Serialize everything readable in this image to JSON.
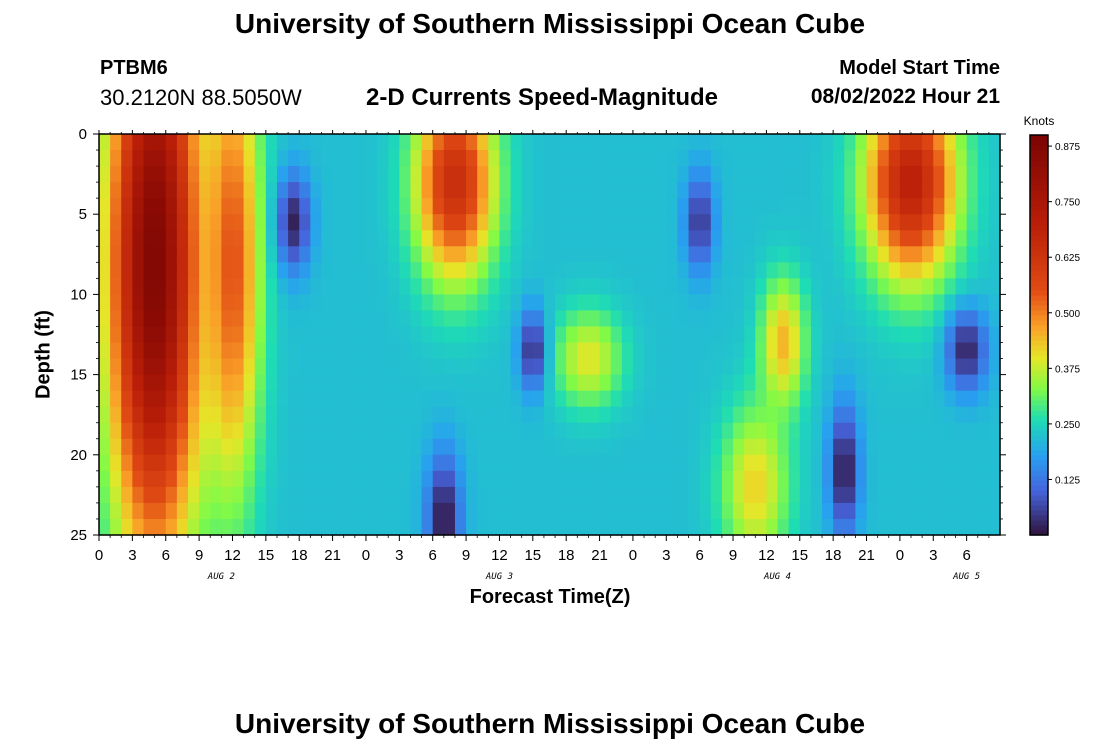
{
  "header": {
    "title_top": "University of Southern Mississippi Ocean Cube",
    "title_bottom": "University of Southern Mississippi Ocean Cube",
    "station": "PTBM6",
    "coordinates": "30.2120N  88.5050W",
    "chart_title": "2-D Currents Speed-Magnitude",
    "model_start_label": "Model Start Time",
    "model_start_value": "08/02/2022 Hour 21"
  },
  "chart_data": {
    "type": "heatmap",
    "title": "2-D Currents Speed-Magnitude",
    "xlabel": "Forecast Time(Z)",
    "ylabel": "Depth (ft)",
    "colorbar_label": "Knots",
    "colorbar_ticks": [
      "0.125",
      "0.250",
      "0.375",
      "0.500",
      "0.625",
      "0.750",
      "0.875"
    ],
    "colorbar_range": [
      0.0,
      0.9
    ],
    "x_range_hours": [
      0,
      81
    ],
    "x_ticks": [
      "0",
      "3",
      "6",
      "9",
      "12",
      "15",
      "18",
      "21",
      "0",
      "3",
      "6",
      "9",
      "12",
      "15",
      "18",
      "21",
      "0",
      "3",
      "6",
      "9",
      "12",
      "15",
      "18",
      "21",
      "0",
      "3",
      "6"
    ],
    "y_range_ft": [
      0,
      25
    ],
    "y_ticks": [
      "0",
      "5",
      "10",
      "15",
      "20",
      "25"
    ],
    "date_labels": [
      {
        "text": "AUG 2",
        "hour": 11
      },
      {
        "text": "AUG 3",
        "hour": 36
      },
      {
        "text": "AUG 4",
        "hour": 61
      },
      {
        "text": "AUG 5",
        "hour": 78
      }
    ],
    "features": [
      {
        "kind": "high",
        "hour": 5,
        "depth": 8,
        "speed": 0.88,
        "sx": 4,
        "sy": 18
      },
      {
        "kind": "high",
        "hour": 12,
        "depth": 8,
        "speed": 0.55,
        "sx": 2.5,
        "sy": 14
      },
      {
        "kind": "high",
        "hour": 32,
        "depth": 3,
        "speed": 0.65,
        "sx": 3.5,
        "sy": 6
      },
      {
        "kind": "high",
        "hour": 59,
        "depth": 22,
        "speed": 0.42,
        "sx": 3,
        "sy": 5
      },
      {
        "kind": "high",
        "hour": 61.5,
        "depth": 13,
        "speed": 0.45,
        "sx": 2,
        "sy": 4
      },
      {
        "kind": "high",
        "hour": 44,
        "depth": 14,
        "speed": 0.4,
        "sx": 3,
        "sy": 3
      },
      {
        "kind": "high",
        "hour": 73,
        "depth": 3,
        "speed": 0.7,
        "sx": 4,
        "sy": 6
      },
      {
        "kind": "low",
        "hour": 17.5,
        "depth": 5.5,
        "speed": 0.02,
        "sx": 1.5,
        "sy": 3
      },
      {
        "kind": "low",
        "hour": 39,
        "depth": 13.5,
        "speed": 0.03,
        "sx": 1.2,
        "sy": 2.5
      },
      {
        "kind": "low",
        "hour": 31,
        "depth": 24,
        "speed": 0.0,
        "sx": 1.5,
        "sy": 4
      },
      {
        "kind": "low",
        "hour": 54,
        "depth": 5.5,
        "speed": 0.04,
        "sx": 1.3,
        "sy": 3
      },
      {
        "kind": "low",
        "hour": 67,
        "depth": 21,
        "speed": 0.0,
        "sx": 1.3,
        "sy": 4
      },
      {
        "kind": "low",
        "hour": 78,
        "depth": 13.5,
        "speed": 0.02,
        "sx": 1.8,
        "sy": 2.5
      }
    ],
    "background_speed": 0.22
  }
}
